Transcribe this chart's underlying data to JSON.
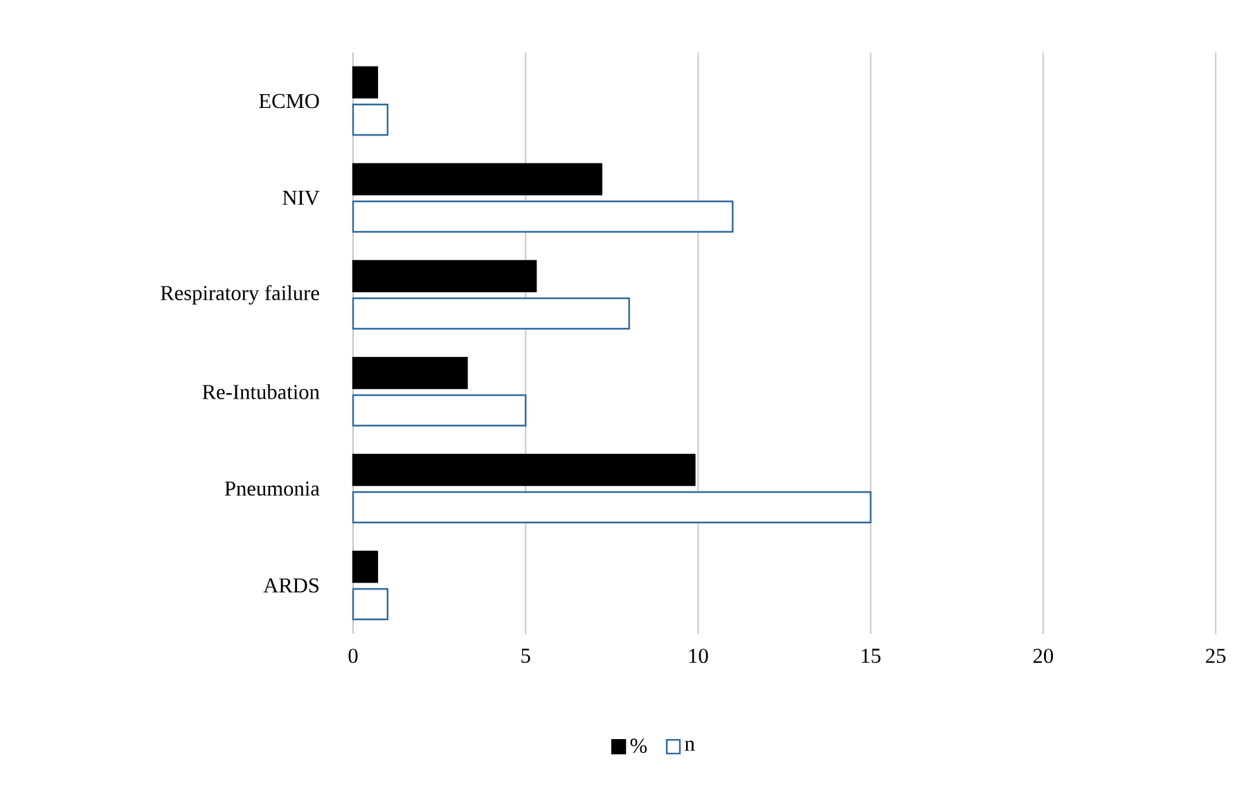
{
  "chart_data": {
    "type": "bar",
    "orientation": "horizontal",
    "categories": [
      "ECMO",
      "NIV",
      "Respiratory failure",
      "Re-Intubation",
      "Pneumonia",
      "ARDS"
    ],
    "series": [
      {
        "name": "%",
        "color": "#000000",
        "values": [
          0.7,
          7.2,
          5.3,
          3.3,
          9.9,
          0.7
        ]
      },
      {
        "name": "n",
        "color": "#2e6a9e",
        "values": [
          1,
          11,
          8,
          5,
          15,
          1
        ]
      }
    ],
    "xlim": [
      0,
      25
    ],
    "xticks": [
      0,
      5,
      10,
      15,
      20,
      25
    ],
    "grid": "x",
    "legend": "bottom"
  }
}
